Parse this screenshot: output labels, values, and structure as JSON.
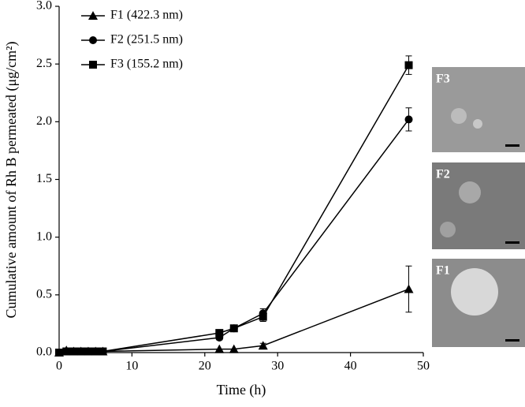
{
  "chart_data": {
    "type": "line",
    "xlabel": "Time (h)",
    "ylabel": "Cumulative amount of Rh B permeated (μg/cm²)",
    "x": [
      0,
      1,
      2,
      3,
      4,
      5,
      6,
      22,
      24,
      28,
      48
    ],
    "series": [
      {
        "name": "F1 (422.3 nm)",
        "color": "#000000",
        "marker": "triangle",
        "values": [
          0,
          0.02,
          0.01,
          0.01,
          0.01,
          0.01,
          0.01,
          0.03,
          0.03,
          0.06,
          0.55
        ],
        "errors": [
          0,
          0,
          0,
          0,
          0,
          0,
          0,
          0,
          0,
          0.02,
          0.2
        ]
      },
      {
        "name": "F2 (251.5 nm)",
        "color": "#000000",
        "marker": "circle",
        "values": [
          0,
          0.01,
          0.01,
          0.01,
          0.01,
          0.01,
          0.01,
          0.13,
          0.21,
          0.34,
          2.02
        ],
        "errors": [
          0,
          0,
          0,
          0,
          0,
          0,
          0,
          0.02,
          0.02,
          0.04,
          0.1
        ]
      },
      {
        "name": "F3 (155.2 nm)",
        "color": "#000000",
        "marker": "square",
        "values": [
          0,
          0.01,
          0.01,
          0.01,
          0.01,
          0.01,
          0.01,
          0.17,
          0.21,
          0.31,
          2.49
        ],
        "errors": [
          0,
          0,
          0,
          0,
          0,
          0,
          0,
          0.02,
          0.02,
          0.04,
          0.08
        ]
      }
    ],
    "xlim": [
      0,
      50
    ],
    "xticks": [
      0,
      10,
      20,
      30,
      40,
      50
    ],
    "ylim": [
      0,
      3
    ],
    "yticks": [
      {
        "value": 0,
        "label": "0.0"
      },
      0.5,
      {
        "value": 1,
        "label": "1.0"
      },
      1.5,
      {
        "value": 2,
        "label": "2.0"
      },
      2.5,
      {
        "value": 3,
        "label": "3.0"
      }
    ],
    "legend": "upper left",
    "grid": false
  },
  "insets": [
    {
      "label": "F3"
    },
    {
      "label": "F2"
    },
    {
      "label": "F1"
    }
  ]
}
